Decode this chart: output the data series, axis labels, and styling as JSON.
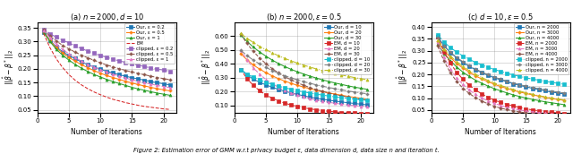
{
  "xlabel": "Number of Iterations",
  "caption": "Figure 2: Estimation error of GMM w.r.t privacy budget ε, data dimension d, data size n and iteration t.",
  "subplot1_title": "(a) $n = 2000, d = 10$",
  "subplot1_legend": [
    "Our, ε = 0.2",
    "Our, ε = 0.5",
    "Our, ε = 1",
    "EM",
    "clipped, ε = 0.2",
    "clipped, ε = 0.5",
    "clipped, ε = 1"
  ],
  "subplot1_ylim": [
    0.04,
    0.37
  ],
  "subplot1_yticks": [
    0.05,
    0.1,
    0.15,
    0.2,
    0.25,
    0.3,
    0.35
  ],
  "subplot1_colors": [
    "#1f77b4",
    "#ff7f0e",
    "#2ca02c",
    "#d62728",
    "#9467bd",
    "#8c564b",
    "#e377c2"
  ],
  "subplot1_styles": [
    "-",
    "-",
    "-",
    "--",
    "--",
    "--",
    "--"
  ],
  "subplot1_markers": [
    "s",
    "P",
    "^",
    "none",
    "s",
    "P",
    "^"
  ],
  "subplot1_data": [
    [
      0.335,
      0.305,
      0.28,
      0.263,
      0.248,
      0.237,
      0.225,
      0.215,
      0.207,
      0.198,
      0.191,
      0.185,
      0.178,
      0.173,
      0.167,
      0.163,
      0.158,
      0.153,
      0.149,
      0.145,
      0.141
    ],
    [
      0.335,
      0.303,
      0.277,
      0.258,
      0.242,
      0.228,
      0.215,
      0.204,
      0.193,
      0.184,
      0.175,
      0.168,
      0.161,
      0.154,
      0.148,
      0.142,
      0.137,
      0.132,
      0.127,
      0.123,
      0.119
    ],
    [
      0.334,
      0.3,
      0.272,
      0.25,
      0.232,
      0.216,
      0.202,
      0.19,
      0.179,
      0.17,
      0.161,
      0.153,
      0.146,
      0.139,
      0.132,
      0.126,
      0.121,
      0.116,
      0.111,
      0.107,
      0.103
    ],
    [
      0.33,
      0.278,
      0.237,
      0.205,
      0.179,
      0.158,
      0.141,
      0.127,
      0.115,
      0.105,
      0.096,
      0.088,
      0.082,
      0.076,
      0.071,
      0.066,
      0.062,
      0.059,
      0.056,
      0.053,
      0.051
    ],
    [
      0.345,
      0.328,
      0.316,
      0.305,
      0.295,
      0.284,
      0.274,
      0.265,
      0.257,
      0.249,
      0.242,
      0.235,
      0.229,
      0.223,
      0.218,
      0.213,
      0.208,
      0.203,
      0.199,
      0.195,
      0.191
    ],
    [
      0.343,
      0.32,
      0.302,
      0.286,
      0.273,
      0.261,
      0.25,
      0.24,
      0.231,
      0.222,
      0.214,
      0.207,
      0.2,
      0.194,
      0.188,
      0.183,
      0.178,
      0.173,
      0.168,
      0.164,
      0.16
    ],
    [
      0.34,
      0.313,
      0.29,
      0.271,
      0.255,
      0.241,
      0.228,
      0.216,
      0.206,
      0.197,
      0.188,
      0.18,
      0.173,
      0.166,
      0.16,
      0.154,
      0.149,
      0.144,
      0.139,
      0.135,
      0.131
    ]
  ],
  "subplot2_title": "(b) $n = 2000, \\epsilon = 0.5$",
  "subplot2_legend": [
    "Our, d = 10",
    "Our, d = 20",
    "Our, d = 30",
    "EM, d = 10",
    "EM, d = 20",
    "EM, d = 30",
    "clipped, d = 10",
    "clipped, d = 20",
    "clipped, d = 30"
  ],
  "subplot2_ylim": [
    0.05,
    0.7
  ],
  "subplot2_yticks": [
    0.1,
    0.2,
    0.3,
    0.4,
    0.5,
    0.6
  ],
  "subplot2_colors": [
    "#1f77b4",
    "#ff7f0e",
    "#2ca02c",
    "#d62728",
    "#e377c2",
    "#8c564b",
    "#17becf",
    "#7f7f7f",
    "#bcbd22"
  ],
  "subplot2_styles": [
    "-",
    "-",
    "-",
    "--",
    "--",
    "--",
    "-.",
    "-.",
    "-."
  ],
  "subplot2_markers": [
    "s",
    "P",
    "^",
    "s",
    "^",
    "P",
    "s",
    "P",
    "^"
  ],
  "subplot2_data": [
    [
      0.36,
      0.32,
      0.291,
      0.268,
      0.249,
      0.232,
      0.216,
      0.203,
      0.191,
      0.18,
      0.17,
      0.161,
      0.153,
      0.145,
      0.138,
      0.132,
      0.126,
      0.12,
      0.115,
      0.11,
      0.105
    ],
    [
      0.475,
      0.43,
      0.393,
      0.363,
      0.337,
      0.314,
      0.294,
      0.276,
      0.26,
      0.246,
      0.233,
      0.221,
      0.21,
      0.2,
      0.191,
      0.182,
      0.174,
      0.166,
      0.159,
      0.153,
      0.147
    ],
    [
      0.61,
      0.563,
      0.522,
      0.487,
      0.456,
      0.428,
      0.403,
      0.381,
      0.361,
      0.343,
      0.327,
      0.312,
      0.298,
      0.285,
      0.273,
      0.262,
      0.252,
      0.242,
      0.233,
      0.225,
      0.217
    ],
    [
      0.36,
      0.295,
      0.245,
      0.207,
      0.177,
      0.153,
      0.133,
      0.117,
      0.104,
      0.093,
      0.084,
      0.076,
      0.069,
      0.063,
      0.058,
      0.054,
      0.05,
      0.047,
      0.044,
      0.042,
      0.04
    ],
    [
      0.5,
      0.43,
      0.373,
      0.326,
      0.288,
      0.257,
      0.231,
      0.209,
      0.191,
      0.175,
      0.162,
      0.15,
      0.14,
      0.131,
      0.123,
      0.116,
      0.11,
      0.104,
      0.099,
      0.095,
      0.091
    ],
    [
      0.615,
      0.548,
      0.491,
      0.443,
      0.402,
      0.366,
      0.335,
      0.308,
      0.285,
      0.264,
      0.246,
      0.229,
      0.215,
      0.202,
      0.19,
      0.179,
      0.17,
      0.161,
      0.153,
      0.146,
      0.139
    ],
    [
      0.36,
      0.328,
      0.305,
      0.285,
      0.268,
      0.253,
      0.24,
      0.228,
      0.217,
      0.207,
      0.198,
      0.19,
      0.182,
      0.175,
      0.168,
      0.162,
      0.156,
      0.151,
      0.146,
      0.141,
      0.137
    ],
    [
      0.5,
      0.46,
      0.428,
      0.4,
      0.375,
      0.353,
      0.333,
      0.315,
      0.299,
      0.285,
      0.272,
      0.26,
      0.249,
      0.239,
      0.23,
      0.221,
      0.213,
      0.205,
      0.198,
      0.191,
      0.185
    ],
    [
      0.62,
      0.585,
      0.555,
      0.527,
      0.503,
      0.48,
      0.459,
      0.44,
      0.422,
      0.406,
      0.391,
      0.377,
      0.364,
      0.352,
      0.341,
      0.33,
      0.32,
      0.311,
      0.302,
      0.294,
      0.286
    ]
  ],
  "subplot3_title": "(c) $d = 10, \\epsilon = 0.5$",
  "subplot3_legend": [
    "Our, n = 2000",
    "Our, n = 3000",
    "Our, n = 4000",
    "EM, n = 2000",
    "EM, n = 3000",
    "EM, n = 4000",
    "clipped, n = 2000",
    "clipped, n = 3000",
    "clipped, n = 4000"
  ],
  "subplot3_ylim": [
    0.04,
    0.42
  ],
  "subplot3_yticks": [
    0.05,
    0.1,
    0.15,
    0.2,
    0.25,
    0.3,
    0.35,
    0.4
  ],
  "subplot3_colors": [
    "#1f77b4",
    "#ff7f0e",
    "#2ca02c",
    "#d62728",
    "#e377c2",
    "#8c564b",
    "#17becf",
    "#7f7f7f",
    "#bcbd22"
  ],
  "subplot3_styles": [
    "-",
    "-",
    "-",
    "--",
    "--",
    "--",
    "-.",
    "-.",
    "-."
  ],
  "subplot3_markers": [
    "s",
    "P",
    "^",
    "s",
    "^",
    "P",
    "s",
    "P",
    "^"
  ],
  "subplot3_data": [
    [
      0.36,
      0.322,
      0.293,
      0.27,
      0.251,
      0.234,
      0.22,
      0.208,
      0.196,
      0.186,
      0.177,
      0.169,
      0.161,
      0.154,
      0.148,
      0.142,
      0.136,
      0.131,
      0.126,
      0.122,
      0.118
    ],
    [
      0.34,
      0.302,
      0.272,
      0.247,
      0.227,
      0.21,
      0.194,
      0.181,
      0.169,
      0.159,
      0.149,
      0.141,
      0.133,
      0.126,
      0.12,
      0.114,
      0.109,
      0.104,
      0.099,
      0.095,
      0.091
    ],
    [
      0.328,
      0.289,
      0.258,
      0.232,
      0.21,
      0.192,
      0.176,
      0.163,
      0.151,
      0.14,
      0.131,
      0.122,
      0.114,
      0.107,
      0.101,
      0.095,
      0.09,
      0.085,
      0.081,
      0.077,
      0.073
    ],
    [
      0.36,
      0.297,
      0.248,
      0.21,
      0.18,
      0.155,
      0.135,
      0.118,
      0.104,
      0.092,
      0.082,
      0.074,
      0.067,
      0.061,
      0.055,
      0.051,
      0.047,
      0.044,
      0.041,
      0.038,
      0.036
    ],
    [
      0.335,
      0.272,
      0.224,
      0.187,
      0.158,
      0.135,
      0.116,
      0.101,
      0.088,
      0.078,
      0.069,
      0.062,
      0.056,
      0.051,
      0.046,
      0.043,
      0.039,
      0.037,
      0.034,
      0.032,
      0.03
    ],
    [
      0.32,
      0.257,
      0.208,
      0.171,
      0.142,
      0.12,
      0.102,
      0.088,
      0.076,
      0.066,
      0.058,
      0.052,
      0.046,
      0.042,
      0.038,
      0.034,
      0.031,
      0.029,
      0.027,
      0.025,
      0.023
    ],
    [
      0.368,
      0.337,
      0.314,
      0.295,
      0.278,
      0.264,
      0.251,
      0.24,
      0.23,
      0.221,
      0.213,
      0.205,
      0.198,
      0.192,
      0.186,
      0.181,
      0.176,
      0.171,
      0.167,
      0.163,
      0.159
    ],
    [
      0.355,
      0.32,
      0.294,
      0.272,
      0.254,
      0.237,
      0.223,
      0.21,
      0.199,
      0.189,
      0.18,
      0.172,
      0.164,
      0.157,
      0.151,
      0.145,
      0.14,
      0.135,
      0.13,
      0.126,
      0.122
    ],
    [
      0.345,
      0.307,
      0.278,
      0.254,
      0.234,
      0.216,
      0.201,
      0.187,
      0.175,
      0.164,
      0.154,
      0.145,
      0.137,
      0.13,
      0.123,
      0.117,
      0.111,
      0.106,
      0.101,
      0.097,
      0.093
    ]
  ]
}
